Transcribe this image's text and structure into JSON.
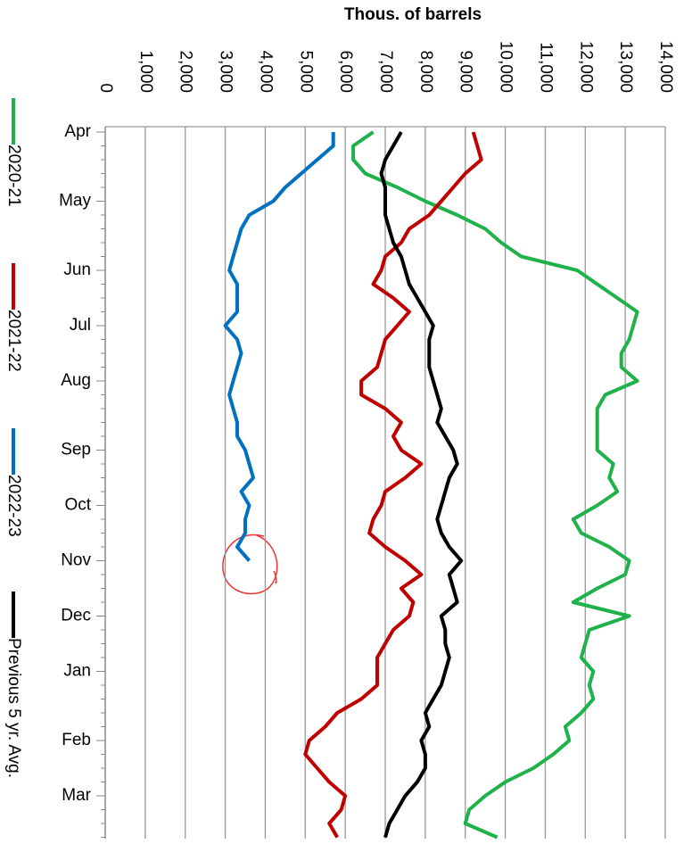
{
  "chart_data": {
    "type": "line",
    "orientation": "rotated",
    "title": "Thous. of barrels",
    "categories": [
      "Apr",
      null,
      null,
      null,
      null,
      "May",
      null,
      null,
      null,
      null,
      "Jun",
      null,
      null,
      null,
      "Jul",
      null,
      null,
      null,
      "Aug",
      null,
      null,
      null,
      null,
      "Sep",
      null,
      null,
      null,
      "Oct",
      null,
      null,
      null,
      "Nov",
      null,
      null,
      null,
      "Dec",
      null,
      null,
      null,
      "Jan",
      null,
      null,
      null,
      null,
      "Feb",
      null,
      null,
      null,
      "Mar",
      null,
      null,
      null
    ],
    "series": [
      {
        "name": "2020-21",
        "color": "#1fb24a",
        "values": [
          6700,
          6200,
          6200,
          6500,
          7300,
          8000,
          8800,
          9500,
          9900,
          10400,
          11800,
          12300,
          12800,
          13300,
          13200,
          13100,
          12900,
          12900,
          13300,
          12500,
          12300,
          12300,
          12300,
          12300,
          12700,
          12600,
          12800,
          12300,
          11700,
          11900,
          12600,
          13100,
          13000,
          12300,
          11700,
          13100,
          12100,
          12000,
          11900,
          12200,
          12100,
          12200,
          11900,
          11500,
          11600,
          11200,
          10700,
          10000,
          9500,
          9100,
          9000,
          9800
        ]
      },
      {
        "name": "2021-22",
        "color": "#c00000",
        "values": [
          9200,
          9300,
          9400,
          9000,
          8700,
          8400,
          8100,
          7600,
          7400,
          7000,
          6900,
          6700,
          7200,
          7600,
          7300,
          7000,
          6900,
          6800,
          6400,
          6400,
          7000,
          7400,
          7200,
          7400,
          7900,
          7500,
          7000,
          6900,
          6700,
          6600,
          7000,
          7500,
          7900,
          7400,
          7700,
          7600,
          7200,
          7000,
          6800,
          6800,
          6800,
          6400,
          5800,
          5500,
          5100,
          5000,
          5300,
          5600,
          6000,
          5900,
          5600,
          5800
        ]
      },
      {
        "name": "2022-23",
        "color": "#0070c0",
        "values": [
          5700,
          5700,
          5300,
          4900,
          4500,
          4200,
          3600,
          3400,
          3300,
          3200,
          3100,
          3300,
          3300,
          3300,
          3000,
          3300,
          3400,
          3300,
          3200,
          3100,
          3200,
          3300,
          3300,
          3500,
          3600,
          3700,
          3400,
          3600,
          3500,
          3500,
          3300,
          3600,
          null,
          null,
          null,
          null,
          null,
          null,
          null,
          null,
          null,
          null,
          null,
          null,
          null,
          null,
          null,
          null,
          null,
          null,
          null,
          null
        ]
      },
      {
        "name": "Previous 5 yr. Avg.",
        "color": "#000000",
        "values": [
          7400,
          7200,
          7000,
          6900,
          7000,
          7000,
          7000,
          7100,
          7200,
          7400,
          7500,
          7600,
          7800,
          8000,
          8200,
          8100,
          8100,
          8100,
          8200,
          8300,
          8400,
          8300,
          8500,
          8700,
          8800,
          8600,
          8500,
          8400,
          8300,
          8400,
          8600,
          8900,
          8600,
          8700,
          8800,
          8400,
          8500,
          8500,
          8600,
          8500,
          8400,
          8200,
          8000,
          8100,
          7900,
          8000,
          8000,
          7800,
          7500,
          7300,
          7100,
          7000
        ]
      }
    ],
    "xlim": [
      0,
      14000
    ],
    "xticks": [
      0,
      {
        "value": 1000,
        "label": "1,000"
      },
      {
        "value": 2000,
        "label": "2,000"
      },
      {
        "value": 3000,
        "label": "3,000"
      },
      {
        "value": 4000,
        "label": "4,000"
      },
      {
        "value": 5000,
        "label": "5,000"
      },
      {
        "value": 6000,
        "label": "6,000"
      },
      {
        "value": 7000,
        "label": "7,000"
      },
      {
        "value": 8000,
        "label": "8,000"
      },
      {
        "value": 9000,
        "label": "9,000"
      },
      {
        "value": 10000,
        "label": "10,000"
      },
      {
        "value": 11000,
        "label": "11,000"
      },
      {
        "value": 12000,
        "label": "12,000"
      },
      {
        "value": 13000,
        "label": "13,000"
      },
      {
        "value": 14000,
        "label": "14,000"
      }
    ],
    "grid": true
  }
}
